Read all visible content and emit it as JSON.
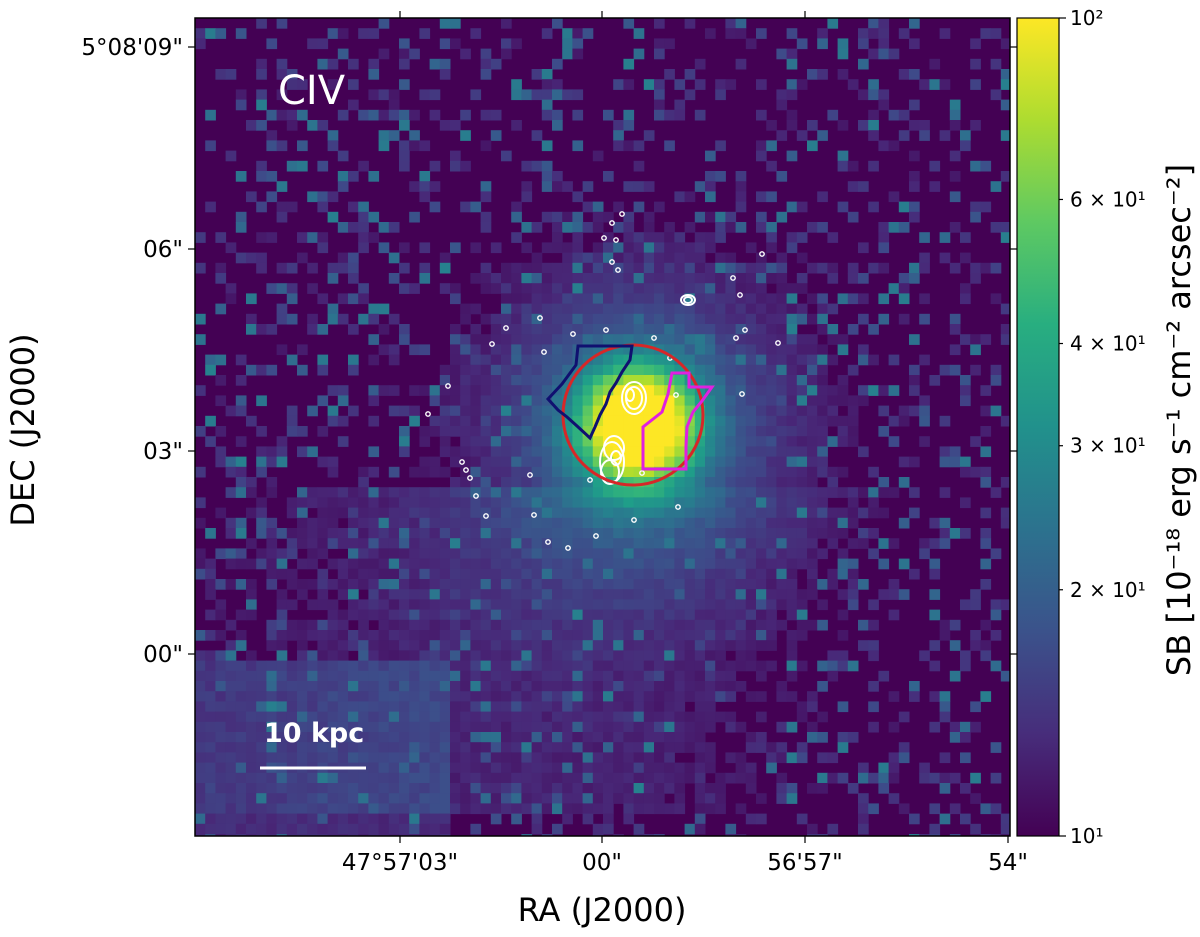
{
  "chart_data": {
    "type": "heatmap",
    "panel_label": "CIV",
    "xlabel": "RA (J2000)",
    "ylabel": "DEC (J2000)",
    "x_ticks": [
      {
        "label": "47°57'03\""
      },
      {
        "label": "00\""
      },
      {
        "label": "56'57\""
      },
      {
        "label": "54\""
      }
    ],
    "y_ticks": [
      {
        "label": "5°08'09\""
      },
      {
        "label": "06\""
      },
      {
        "label": "03\""
      },
      {
        "label": "00\""
      }
    ],
    "colorbar": {
      "label": "SB [10⁻¹⁸ erg s⁻¹ cm⁻² arcsec⁻²]",
      "scale": "log",
      "range": [
        10,
        100
      ],
      "colormap": "viridis",
      "major_ticks": [
        {
          "value": 10,
          "label": "10¹"
        },
        {
          "value": 100,
          "label": "10²"
        }
      ],
      "minor_ticks": [
        {
          "value": 20,
          "label": "2 × 10¹"
        },
        {
          "value": 30,
          "label": "3 × 10¹"
        },
        {
          "value": 40,
          "label": "4 × 10¹"
        },
        {
          "value": 60,
          "label": "6 × 10¹"
        }
      ]
    },
    "scale_bar": {
      "label": "10 kpc"
    },
    "overlays": {
      "circle_color": "#d62728",
      "region_left_color": "#101070",
      "region_right_color": "#e020e0",
      "contour_color": "#ffffff"
    }
  }
}
